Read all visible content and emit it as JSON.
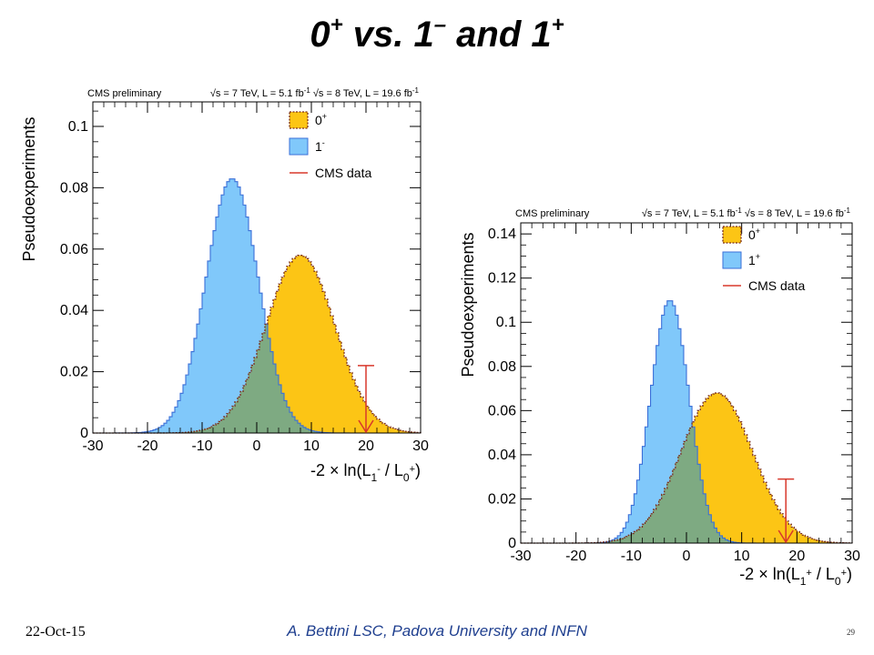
{
  "slide": {
    "title_parts": [
      "0",
      "+",
      " vs. 1",
      "–",
      " and 1",
      "+"
    ],
    "footer_date": "22-Oct-15",
    "footer_author": "A. Bettini LSC, Padova University and INFN",
    "page_number": "29"
  },
  "colors": {
    "blue_fill": "#80c8fa",
    "blue_edge": "#3a6fd8",
    "orange_fill": "#fcc515",
    "orange_edge": "#7a2e1e",
    "overlap_fill": "#7eaa82",
    "data_red": "#d8382c",
    "axis": "#000000"
  },
  "chart_data": [
    {
      "type": "histogram",
      "header_left": "CMS preliminary",
      "header_right_parts": [
        "√s = 7 TeV, L = 5.1 fb",
        "-1",
        " √s = 8 TeV, L = 19.6 fb",
        "-1"
      ],
      "ylabel": "Pseudoexperiments",
      "xlabel_parts": [
        "-2 × ln(L",
        "1",
        "-",
        " / L",
        "0",
        "+",
        ")"
      ],
      "xlim": [
        -30,
        30
      ],
      "ylim": [
        0,
        0.108
      ],
      "xticks": [
        -30,
        -20,
        -10,
        0,
        10,
        20,
        30
      ],
      "xtick_labels": [
        "-30",
        "-20",
        "-10",
        "0",
        "10",
        "20",
        "30"
      ],
      "yticks": [
        0,
        0.02,
        0.04,
        0.06,
        0.08,
        0.1
      ],
      "ytick_labels": [
        "0",
        "0.02",
        "0.04",
        "0.06",
        "0.08",
        "0.1"
      ],
      "legend_position": "top-right",
      "legend": [
        {
          "key": "0+",
          "text": "0",
          "sup": "+",
          "style": "orange"
        },
        {
          "key": "1-",
          "text": "1",
          "sup": "-",
          "style": "blue"
        },
        {
          "key": "data",
          "text": "CMS data",
          "sup": "",
          "style": "red"
        }
      ],
      "series": [
        {
          "name": "1-",
          "kind": "gaussian",
          "mean": -4.5,
          "sigma": 4.8,
          "peak": 0.083,
          "color": "blue"
        },
        {
          "name": "0+",
          "kind": "gaussian",
          "mean": 8.0,
          "sigma": 6.3,
          "peak": 0.058,
          "color": "orange"
        }
      ],
      "cms_data": {
        "x": 20.0,
        "marker_height": 0.022
      }
    },
    {
      "type": "histogram",
      "header_left": "CMS preliminary",
      "header_right_parts": [
        "√s = 7 TeV, L = 5.1 fb",
        "-1",
        " √s = 8 TeV, L = 19.6 fb",
        "-1"
      ],
      "ylabel": "Pseudoexperiments",
      "xlabel_parts": [
        "-2 × ln(L",
        "1",
        "+",
        " / L",
        "0",
        "+",
        ")"
      ],
      "xlim": [
        -30,
        30
      ],
      "ylim": [
        0,
        0.145
      ],
      "xticks": [
        -30,
        -20,
        -10,
        0,
        10,
        20,
        30
      ],
      "xtick_labels": [
        "-30",
        "-20",
        "-10",
        "0",
        "10",
        "20",
        "30"
      ],
      "yticks": [
        0,
        0.02,
        0.04,
        0.06,
        0.08,
        0.1,
        0.12,
        0.14
      ],
      "ytick_labels": [
        "0",
        "0.02",
        "0.04",
        "0.06",
        "0.08",
        "0.1",
        "0.12",
        "0.14"
      ],
      "legend_position": "top-right",
      "legend": [
        {
          "key": "0+",
          "text": "0",
          "sup": "+",
          "style": "orange"
        },
        {
          "key": "1+",
          "text": "1",
          "sup": "+",
          "style": "blue"
        },
        {
          "key": "data",
          "text": "CMS data",
          "sup": "",
          "style": "red"
        }
      ],
      "series": [
        {
          "name": "1+",
          "kind": "gaussian",
          "mean": -3.0,
          "sigma": 3.5,
          "peak": 0.11,
          "color": "blue"
        },
        {
          "name": "0+",
          "kind": "gaussian",
          "mean": 5.5,
          "sigma": 6.5,
          "peak": 0.068,
          "color": "orange"
        }
      ],
      "cms_data": {
        "x": 18.0,
        "marker_height": 0.029
      }
    }
  ]
}
